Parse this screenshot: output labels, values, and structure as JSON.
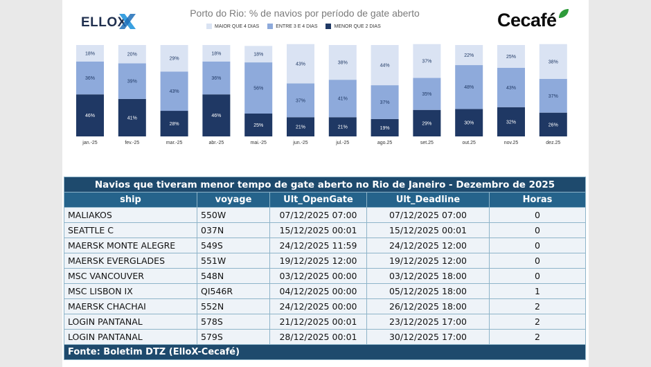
{
  "header": {
    "logo_left": "ELLOX",
    "logo_right": "Cecafé"
  },
  "chart_data": {
    "type": "bar",
    "stacked": true,
    "title": "Porto do Rio: % de navios por período de gate aberto",
    "categories": [
      "jan.-25",
      "fev.-25",
      "mar.-25",
      "abr.-25",
      "mai.-25",
      "jun.-25",
      "jul.-25",
      "ago.25",
      "set.25",
      "out.25",
      "nov.25",
      "dez.25"
    ],
    "series": [
      {
        "name": "MENOR QUE 2 DIAS",
        "color": "#1f3864",
        "values": [
          46,
          41,
          28,
          46,
          25,
          21,
          21,
          19,
          29,
          30,
          32,
          26
        ]
      },
      {
        "name": "ENTRE 3 E 4 DIAS",
        "color": "#8eaadb",
        "values": [
          36,
          39,
          43,
          36,
          56,
          37,
          41,
          37,
          35,
          48,
          43,
          37
        ]
      },
      {
        "name": "MAIOR QUE 4 DIAS",
        "color": "#dae3f3",
        "values": [
          18,
          20,
          29,
          18,
          18,
          43,
          38,
          44,
          37,
          22,
          25,
          38
        ]
      }
    ],
    "data_labels": [
      "18%",
      "36%",
      "46%",
      "20%",
      "39%",
      "41%",
      "29%",
      "43%",
      "28%",
      "18%",
      "36%",
      "46%",
      "18%",
      "56%",
      "25%",
      "43%",
      "37%",
      "21%",
      "38%",
      "41%",
      "21%",
      "44%",
      "37%",
      "19%",
      "37%",
      "35%",
      "29%",
      "22%",
      "48%",
      "30%",
      "25%",
      "43%",
      "32%",
      "38%",
      "37%",
      "26%"
    ],
    "ylim": [
      0,
      100
    ],
    "xlabel": "",
    "ylabel": "",
    "legend": [
      "MAIOR QUE 4 DIAS",
      "ENTRE 3 E 4 DIAS",
      "MENOR QUE 2 DIAS"
    ],
    "legend_position": "top-center",
    "grid": false
  },
  "table": {
    "title": "Navios que tiveram menor tempo de gate aberto no Rio de Janeiro - Dezembro de 2025",
    "columns": [
      "ship",
      "voyage",
      "Ult_OpenGate",
      "Ult_Deadline",
      "Horas"
    ],
    "rows": [
      [
        "MALIAKOS",
        "550W",
        "07/12/2025 07:00",
        "07/12/2025 07:00",
        "0"
      ],
      [
        "SEATTLE C",
        "037N",
        "15/12/2025 00:01",
        "15/12/2025 00:01",
        "0"
      ],
      [
        "MAERSK MONTE ALEGRE",
        "549S",
        "24/12/2025 11:59",
        "24/12/2025 12:00",
        "0"
      ],
      [
        "MAERSK EVERGLADES",
        "551W",
        "19/12/2025 12:00",
        "19/12/2025 12:00",
        "0"
      ],
      [
        "MSC VANCOUVER",
        "548N",
        "03/12/2025 00:00",
        "03/12/2025 18:00",
        "0"
      ],
      [
        "MSC LISBON IX",
        "QI546R",
        "04/12/2025 00:00",
        "05/12/2025 18:00",
        "1"
      ],
      [
        "MAERSK CHACHAI",
        "552N",
        "24/12/2025 00:00",
        "26/12/2025 18:00",
        "2"
      ],
      [
        "LOGIN PANTANAL",
        "578S",
        "21/12/2025 00:01",
        "23/12/2025 17:00",
        "2"
      ],
      [
        "LOGIN PANTANAL",
        "579S",
        "28/12/2025 00:01",
        "30/12/2025 17:00",
        "2"
      ]
    ],
    "footer": "Fonte: Boletim DTZ (ElloX-Cecafé)"
  }
}
